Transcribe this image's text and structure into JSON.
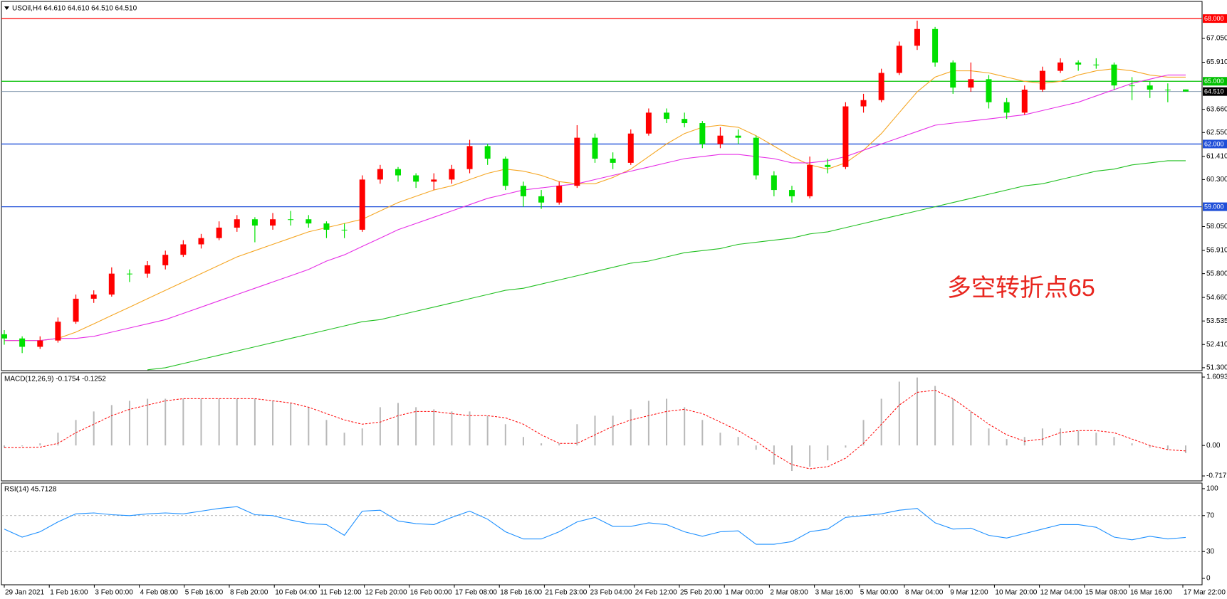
{
  "chart_data": [
    {
      "type": "candlestick",
      "title": "USOil,H4  64.610 64.610 64.510 64.510",
      "annotation": "多空转折点65",
      "up_color": "#ff0000",
      "down_color": "#00e000",
      "ylim": [
        51.16,
        68.82
      ],
      "yticks": [
        {
          "value": 51.3,
          "label": "51.300"
        },
        {
          "value": 52.41,
          "label": "52.410"
        },
        {
          "value": 53.535,
          "label": "53.535"
        },
        {
          "value": 54.66,
          "label": "54.660"
        },
        {
          "value": 55.8,
          "label": "55.800"
        },
        {
          "value": 56.91,
          "label": "56.910"
        },
        {
          "value": 58.05,
          "label": "58.050"
        },
        {
          "value": 60.3,
          "label": "60.300"
        },
        {
          "value": 61.41,
          "label": "61.410"
        },
        {
          "value": 62.55,
          "label": "62.550"
        },
        {
          "value": 63.66,
          "label": "63.660"
        },
        {
          "value": 65.91,
          "label": "65.910"
        },
        {
          "value": 67.05,
          "label": "67.050"
        }
      ],
      "open": [
        52.9,
        52.7,
        52.3,
        52.6,
        53.5,
        54.6,
        54.8,
        55.8,
        55.8,
        56.2,
        56.7,
        57.2,
        57.5,
        58.0,
        58.4,
        58.1,
        58.4,
        58.4,
        58.2,
        57.9,
        57.9,
        60.3,
        60.8,
        60.5,
        60.2,
        60.3,
        60.8,
        61.9,
        61.3,
        60.0,
        59.5,
        59.2,
        60.0,
        62.3,
        61.3,
        61.1,
        62.5,
        63.5,
        63.2,
        63.0,
        62.0,
        62.4,
        62.3,
        60.5,
        59.8,
        59.5,
        61.0,
        60.9,
        63.8,
        64.1,
        65.4,
        66.7,
        67.5,
        65.9,
        64.7,
        65.1,
        64.0,
        63.5,
        64.6,
        65.5,
        65.9,
        65.8,
        65.8,
        64.8,
        64.8,
        64.6,
        64.61
      ],
      "high": [
        53.1,
        52.8,
        52.8,
        53.7,
        54.8,
        55.0,
        56.1,
        56.0,
        56.4,
        56.9,
        57.4,
        57.7,
        58.3,
        58.6,
        58.5,
        58.7,
        58.8,
        58.6,
        58.3,
        58.2,
        60.5,
        61.0,
        60.9,
        60.6,
        60.6,
        61.0,
        62.2,
        62.0,
        61.4,
        60.2,
        59.8,
        60.2,
        62.9,
        62.5,
        61.6,
        62.7,
        63.7,
        63.7,
        63.5,
        63.1,
        62.8,
        62.7,
        62.4,
        60.7,
        60.0,
        61.4,
        61.3,
        64.0,
        64.4,
        65.6,
        66.9,
        67.9,
        67.6,
        66.0,
        65.9,
        65.3,
        64.2,
        64.8,
        65.7,
        66.1,
        66.0,
        66.1,
        65.9,
        65.2,
        65.0,
        64.9,
        64.61
      ],
      "low": [
        52.4,
        52.0,
        52.2,
        52.5,
        53.4,
        54.4,
        54.7,
        55.4,
        55.6,
        56.0,
        56.6,
        57.0,
        57.4,
        57.8,
        57.3,
        57.9,
        58.1,
        58.0,
        57.5,
        57.5,
        57.8,
        60.1,
        60.2,
        59.9,
        59.8,
        60.1,
        60.6,
        61.0,
        59.8,
        59.0,
        58.9,
        59.1,
        59.9,
        61.1,
        60.8,
        61.0,
        62.4,
        63.0,
        62.8,
        61.8,
        61.8,
        62.0,
        60.3,
        59.5,
        59.2,
        59.4,
        60.6,
        60.8,
        63.5,
        64.0,
        65.3,
        66.5,
        65.7,
        64.4,
        64.5,
        63.7,
        63.2,
        63.4,
        64.5,
        65.4,
        65.5,
        65.6,
        64.6,
        64.1,
        64.2,
        64.0,
        64.51
      ],
      "close": [
        52.7,
        52.3,
        52.6,
        53.5,
        54.6,
        54.8,
        55.8,
        55.8,
        56.2,
        56.7,
        57.2,
        57.5,
        58.0,
        58.4,
        58.1,
        58.4,
        58.4,
        58.2,
        57.9,
        57.9,
        60.3,
        60.8,
        60.5,
        60.2,
        60.3,
        60.8,
        61.9,
        61.3,
        60.0,
        59.5,
        59.2,
        60.0,
        62.3,
        61.3,
        61.1,
        62.5,
        63.5,
        63.2,
        63.0,
        62.0,
        62.4,
        62.3,
        60.5,
        59.8,
        59.5,
        61.0,
        60.9,
        63.8,
        64.1,
        65.4,
        66.7,
        67.5,
        65.9,
        64.7,
        65.1,
        64.0,
        63.5,
        64.6,
        65.5,
        65.9,
        65.8,
        65.8,
        64.8,
        64.8,
        64.6,
        64.6,
        64.51
      ],
      "lines": [
        {
          "color": "#f5a623",
          "values": [
            52.6,
            52.6,
            52.6,
            52.7,
            53.0,
            53.4,
            53.8,
            54.2,
            54.6,
            55.0,
            55.4,
            55.8,
            56.2,
            56.6,
            56.9,
            57.2,
            57.5,
            57.8,
            58.0,
            58.2,
            58.4,
            58.8,
            59.2,
            59.5,
            59.8,
            60.0,
            60.3,
            60.6,
            60.8,
            60.7,
            60.5,
            60.2,
            60.1,
            60.1,
            60.4,
            60.8,
            61.4,
            62.0,
            62.5,
            62.8,
            62.9,
            62.8,
            62.4,
            61.9,
            61.4,
            61.0,
            60.8,
            61.1,
            61.7,
            62.5,
            63.5,
            64.5,
            65.2,
            65.5,
            65.5,
            65.4,
            65.2,
            65.0,
            64.9,
            65.0,
            65.3,
            65.5,
            65.6,
            65.5,
            65.3,
            65.2,
            65.2
          ]
        },
        {
          "color": "#e62ee6",
          "values": [
            52.6,
            52.6,
            52.6,
            52.7,
            52.7,
            52.8,
            53.0,
            53.2,
            53.4,
            53.6,
            53.9,
            54.2,
            54.5,
            54.8,
            55.1,
            55.4,
            55.7,
            56.0,
            56.4,
            56.7,
            57.1,
            57.5,
            57.9,
            58.2,
            58.5,
            58.8,
            59.1,
            59.4,
            59.6,
            59.8,
            59.9,
            60.0,
            60.1,
            60.3,
            60.5,
            60.7,
            60.9,
            61.1,
            61.3,
            61.4,
            61.5,
            61.5,
            61.4,
            61.3,
            61.1,
            61.1,
            61.2,
            61.4,
            61.7,
            62.0,
            62.3,
            62.6,
            62.9,
            63.0,
            63.1,
            63.2,
            63.3,
            63.4,
            63.6,
            63.8,
            64.0,
            64.3,
            64.6,
            64.9,
            65.1,
            65.3,
            65.3
          ]
        },
        {
          "color": "#22c022",
          "values": [
            null,
            null,
            null,
            null,
            null,
            null,
            null,
            null,
            51.2,
            51.3,
            51.5,
            51.7,
            51.9,
            52.1,
            52.3,
            52.5,
            52.7,
            52.9,
            53.1,
            53.3,
            53.5,
            53.6,
            53.8,
            54.0,
            54.2,
            54.4,
            54.6,
            54.8,
            55.0,
            55.1,
            55.3,
            55.5,
            55.7,
            55.9,
            56.1,
            56.3,
            56.4,
            56.6,
            56.8,
            56.9,
            57.0,
            57.2,
            57.3,
            57.4,
            57.5,
            57.7,
            57.8,
            58.0,
            58.2,
            58.4,
            58.6,
            58.8,
            59.0,
            59.2,
            59.4,
            59.6,
            59.8,
            60.0,
            60.1,
            60.3,
            60.5,
            60.7,
            60.8,
            61.0,
            61.1,
            61.2,
            61.2
          ]
        }
      ],
      "levels": [
        {
          "value": 68,
          "label": "68.000",
          "color": "#ff0000"
        },
        {
          "value": 65,
          "label": "65.000",
          "color": "#00c000"
        },
        {
          "value": 62,
          "label": "62.000",
          "color": "#1f4fd8"
        },
        {
          "value": 59,
          "label": "59.000",
          "color": "#1f4fd8"
        }
      ],
      "last_price": {
        "value": 64.51,
        "label": "64.510",
        "color": "#7890a8"
      }
    },
    {
      "type": "macd",
      "title": "MACD(12,26,9) -0.1754 -0.1252",
      "color": "#b8b8b8",
      "signal_color": "#ff0000",
      "ylim": [
        -0.834,
        1.71
      ],
      "yticks": [
        1.6093,
        {
          "value": 0,
          "label": "0.00"
        },
        -0.7172
      ],
      "values": [
        -0.05,
        -0.02,
        0.05,
        0.3,
        0.6,
        0.8,
        0.95,
        1.05,
        1.1,
        1.1,
        1.1,
        1.1,
        1.1,
        1.1,
        1.1,
        1.05,
        1.0,
        0.9,
        0.6,
        0.3,
        0.4,
        0.9,
        1.0,
        0.9,
        0.85,
        0.8,
        0.8,
        0.7,
        0.5,
        0.2,
        0.05,
        0.05,
        0.5,
        0.7,
        0.7,
        0.85,
        1.05,
        1.1,
        0.9,
        0.6,
        0.3,
        0.2,
        -0.1,
        -0.45,
        -0.6,
        -0.5,
        -0.35,
        -0.05,
        0.6,
        1.1,
        1.5,
        1.6,
        1.4,
        1.1,
        0.8,
        0.4,
        0.15,
        0.2,
        0.4,
        0.4,
        0.35,
        0.3,
        0.2,
        0.05,
        -0.05,
        -0.1,
        -0.18
      ],
      "signal": [
        -0.05,
        -0.05,
        -0.04,
        0.05,
        0.3,
        0.5,
        0.7,
        0.85,
        0.95,
        1.05,
        1.1,
        1.1,
        1.1,
        1.1,
        1.1,
        1.05,
        1.0,
        0.9,
        0.75,
        0.6,
        0.5,
        0.55,
        0.7,
        0.8,
        0.8,
        0.75,
        0.7,
        0.7,
        0.65,
        0.5,
        0.25,
        0.05,
        0.05,
        0.25,
        0.45,
        0.6,
        0.7,
        0.8,
        0.85,
        0.75,
        0.55,
        0.35,
        0.1,
        -0.2,
        -0.45,
        -0.55,
        -0.5,
        -0.3,
        0.05,
        0.5,
        0.95,
        1.25,
        1.3,
        1.1,
        0.8,
        0.5,
        0.25,
        0.1,
        0.15,
        0.3,
        0.35,
        0.35,
        0.3,
        0.15,
        0.0,
        -0.1,
        -0.13
      ]
    },
    {
      "type": "line",
      "title": "RSI(14) 45.7128",
      "color": "#1e90ff",
      "ylim": [
        -7.1,
        106.3
      ],
      "yticks": [
        100,
        70,
        30,
        0
      ],
      "levels": [
        70,
        30
      ],
      "values": [
        55,
        46,
        52,
        63,
        72,
        73,
        71,
        70,
        72,
        73,
        72,
        75,
        78,
        80,
        71,
        70,
        65,
        61,
        60,
        48,
        75,
        76,
        64,
        61,
        60,
        68,
        75,
        66,
        52,
        44,
        44,
        52,
        63,
        68,
        58,
        58,
        62,
        60,
        52,
        47,
        52,
        53,
        38,
        38,
        41,
        52,
        55,
        68,
        70,
        72,
        76,
        78,
        62,
        55,
        56,
        48,
        45,
        50,
        55,
        60,
        60,
        57,
        46,
        43,
        47,
        44,
        45.7
      ],
      "x_labels": [
        "29 Jan 2021",
        "1 Feb 16:00",
        "3 Feb 00:00",
        "4 Feb 08:00",
        "5 Feb 16:00",
        "8 Feb 20:00",
        "10 Feb 04:00",
        "11 Feb 12:00",
        "12 Feb 20:00",
        "16 Feb 00:00",
        "17 Feb 08:00",
        "18 Feb 16:00",
        "21 Feb 23:00",
        "23 Feb 04:00",
        "24 Feb 12:00",
        "25 Feb 20:00",
        "1 Mar 00:00",
        "2 Mar 08:00",
        "3 Mar 16:00",
        "5 Mar 00:00",
        "8 Mar 04:00",
        "9 Mar 12:00",
        "10 Mar 20:00",
        "12 Mar 04:00",
        "15 Mar 08:00",
        "16 Mar 16:00",
        "17 Mar 22:00"
      ]
    }
  ]
}
